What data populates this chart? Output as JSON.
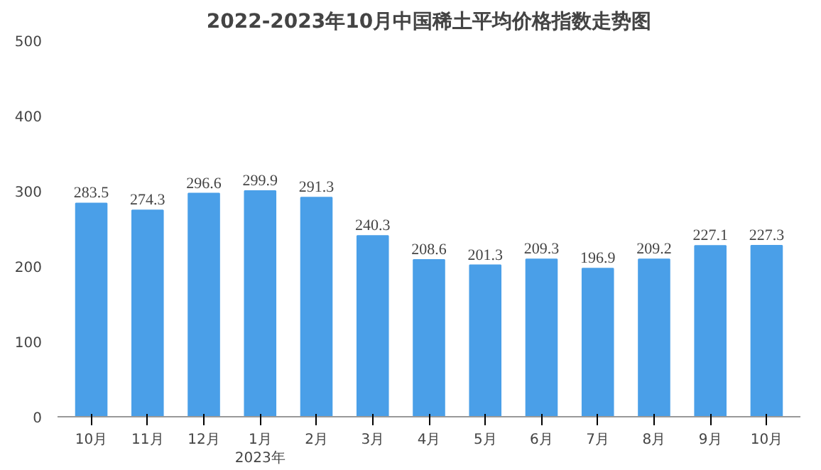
{
  "chart_data": {
    "type": "bar",
    "title": "2022-2023年10月中国稀土平均价格指数走势图",
    "categories": [
      "10月",
      "11月",
      "12月",
      "1月\n2023年",
      "2月",
      "3月",
      "4月",
      "5月",
      "6月",
      "7月",
      "8月",
      "9月",
      "10月"
    ],
    "values": [
      283.5,
      274.3,
      296.6,
      299.9,
      291.3,
      240.3,
      208.6,
      201.3,
      209.3,
      196.9,
      209.2,
      227.1,
      227.3
    ],
    "color": "#4a9fe8",
    "ylim": [
      0,
      500
    ],
    "yticks": [
      0,
      100,
      200,
      300,
      400,
      500
    ],
    "grid": false,
    "data_labels": true
  }
}
